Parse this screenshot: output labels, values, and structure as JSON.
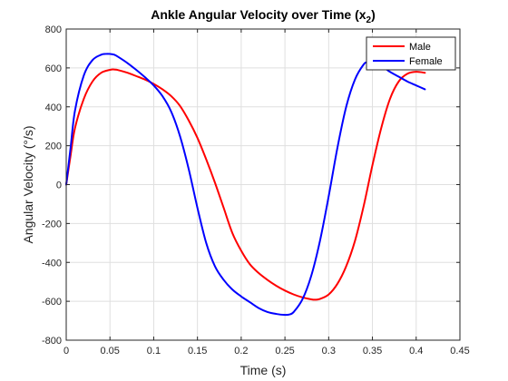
{
  "chart_data": {
    "type": "line",
    "title": "Ankle Angular Velocity over Time (x",
    "title_subscript": "2",
    "title_suffix": ")",
    "xlabel": "Time (s)",
    "ylabel": "Angular Velocity (°/s)",
    "xlim": [
      0,
      0.45
    ],
    "ylim": [
      -800,
      800
    ],
    "xticks": [
      0,
      0.05,
      0.1,
      0.15,
      0.2,
      0.25,
      0.3,
      0.35,
      0.4,
      0.45
    ],
    "xtick_labels": [
      "0",
      "0.05",
      "0.1",
      "0.15",
      "0.2",
      "0.25",
      "0.3",
      "0.35",
      "0.4",
      "0.45"
    ],
    "yticks": [
      -800,
      -600,
      -400,
      -200,
      0,
      200,
      400,
      600,
      800
    ],
    "ytick_labels": [
      "-800",
      "-600",
      "-400",
      "-200",
      "0",
      "200",
      "400",
      "600",
      "800"
    ],
    "grid": true,
    "legend_position": "top-right",
    "series": [
      {
        "name": "Male",
        "color": "#ff0000",
        "x": [
          0,
          0.005,
          0.01,
          0.02,
          0.03,
          0.04,
          0.05,
          0.055,
          0.06,
          0.07,
          0.08,
          0.09,
          0.1,
          0.11,
          0.12,
          0.13,
          0.14,
          0.15,
          0.16,
          0.17,
          0.18,
          0.19,
          0.2,
          0.21,
          0.22,
          0.23,
          0.24,
          0.25,
          0.26,
          0.27,
          0.28,
          0.285,
          0.29,
          0.3,
          0.31,
          0.32,
          0.33,
          0.34,
          0.35,
          0.36,
          0.37,
          0.38,
          0.39,
          0.4,
          0.41
        ],
        "y": [
          0,
          150,
          290,
          440,
          530,
          575,
          590,
          592,
          588,
          575,
          558,
          540,
          518,
          490,
          455,
          405,
          330,
          240,
          130,
          10,
          -120,
          -250,
          -340,
          -410,
          -455,
          -490,
          -520,
          -545,
          -565,
          -580,
          -590,
          -592,
          -588,
          -565,
          -510,
          -420,
          -290,
          -110,
          100,
          290,
          440,
          530,
          570,
          580,
          575
        ]
      },
      {
        "name": "Female",
        "color": "#0000ff",
        "x": [
          0,
          0.005,
          0.01,
          0.02,
          0.03,
          0.04,
          0.045,
          0.05,
          0.055,
          0.06,
          0.07,
          0.08,
          0.09,
          0.1,
          0.11,
          0.12,
          0.13,
          0.14,
          0.15,
          0.16,
          0.17,
          0.18,
          0.19,
          0.2,
          0.21,
          0.22,
          0.23,
          0.24,
          0.25,
          0.255,
          0.26,
          0.27,
          0.28,
          0.29,
          0.3,
          0.31,
          0.32,
          0.33,
          0.34,
          0.345,
          0.35,
          0.36,
          0.37,
          0.38,
          0.39,
          0.4,
          0.41
        ],
        "y": [
          0,
          190,
          380,
          560,
          640,
          668,
          672,
          672,
          668,
          655,
          625,
          590,
          552,
          510,
          455,
          375,
          250,
          80,
          -120,
          -300,
          -420,
          -490,
          -540,
          -575,
          -605,
          -635,
          -655,
          -665,
          -670,
          -668,
          -655,
          -590,
          -470,
          -290,
          -60,
          190,
          400,
          540,
          618,
          630,
          628,
          610,
          580,
          555,
          530,
          510,
          490
        ]
      }
    ]
  }
}
